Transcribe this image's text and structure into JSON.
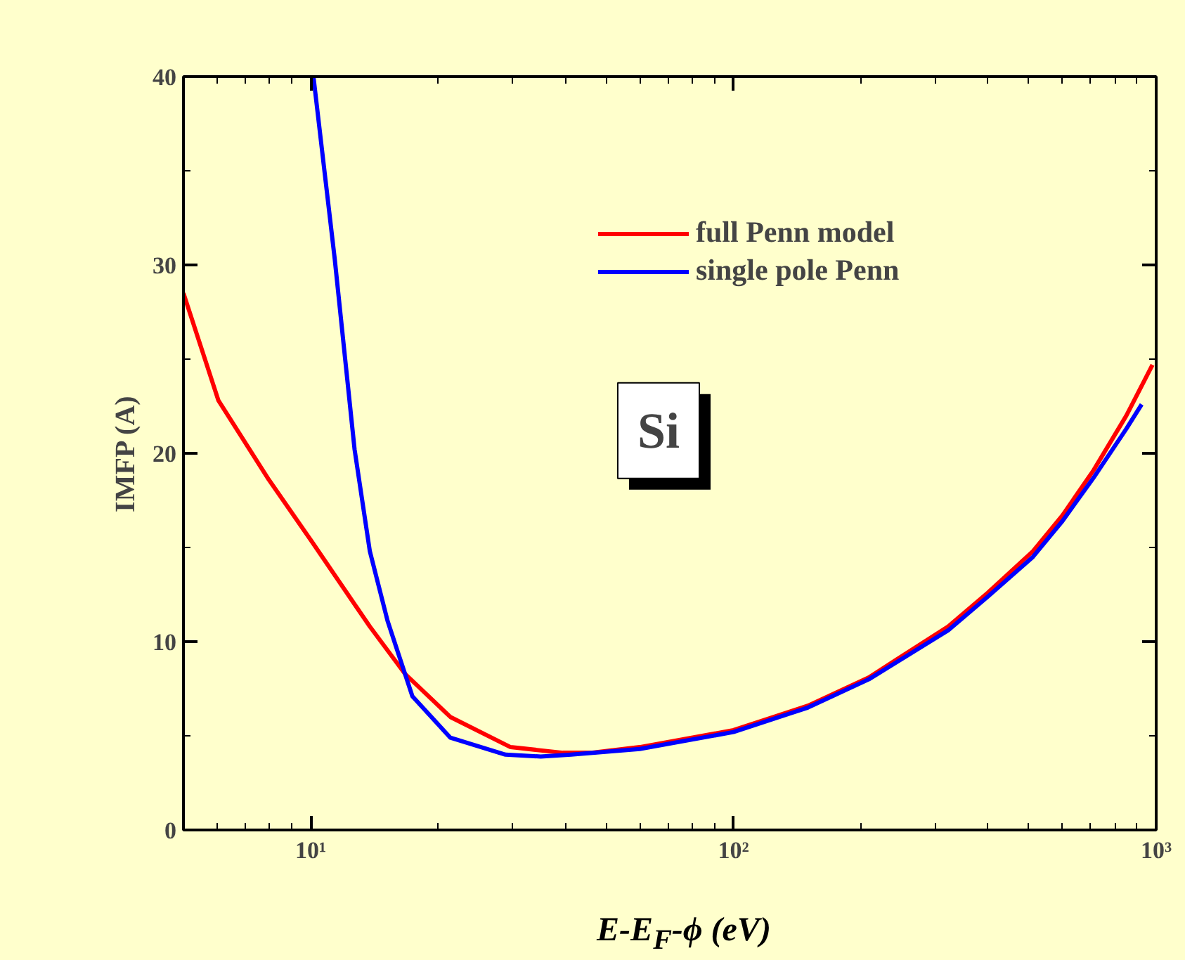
{
  "chart_data": {
    "type": "line",
    "xlabel": "E-E$_{F}$-ϕ (eV)",
    "ylabel": "IMFP (A)",
    "annotations": [
      "Si"
    ],
    "log": "x",
    "xlim": [
      5,
      1000
    ],
    "ylim": [
      0,
      40
    ],
    "xticks": [
      {
        "value": 10,
        "label": "10¹"
      },
      {
        "value": 100,
        "label": "10²"
      },
      {
        "value": 1000,
        "label": "10³"
      }
    ],
    "yticks": [
      0,
      10,
      20,
      30,
      40
    ],
    "grid": false,
    "legend": "top right",
    "line_style": "solid",
    "marker": "none",
    "series": [
      {
        "name": "full Penn model",
        "color": "#ff0000",
        "x": [
          5,
          6.05,
          7.96,
          10,
          13.8,
          16.7,
          21.4,
          29.7,
          39.5,
          46,
          60,
          100,
          150,
          209,
          322,
          400,
          511,
          600,
          711,
          850,
          980
        ],
        "values": [
          28.5,
          22.8,
          18.6,
          15.4,
          10.8,
          8.3,
          6.0,
          4.4,
          4.1,
          4.1,
          4.4,
          5.3,
          6.6,
          8.1,
          10.8,
          12.6,
          14.8,
          16.7,
          19.1,
          22.0,
          24.7
        ]
      },
      {
        "name": "single pole Penn",
        "color": "#0000ff",
        "x": [
          10.15,
          11.4,
          12.7,
          13.8,
          15.2,
          17.4,
          21.4,
          28.9,
          35,
          41.3,
          60,
          100,
          150,
          209,
          322,
          400,
          511,
          600,
          711,
          850,
          924
        ],
        "values": [
          40,
          30.3,
          20.2,
          14.8,
          11.1,
          7.1,
          4.9,
          4.0,
          3.9,
          4.0,
          4.3,
          5.2,
          6.5,
          8.0,
          10.6,
          12.4,
          14.5,
          16.4,
          18.7,
          21.3,
          22.6
        ]
      }
    ]
  }
}
